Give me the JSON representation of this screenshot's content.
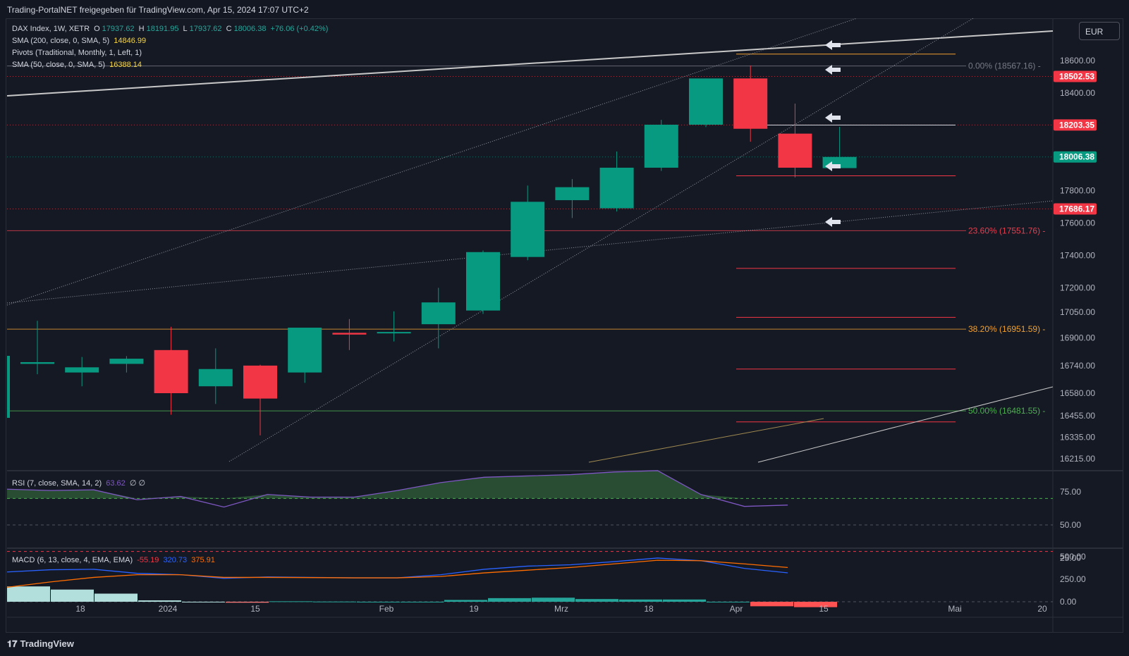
{
  "header": {
    "title": "Trading-PortalNET freigegeben für TradingView.com, Apr 15, 2024 17:07 UTC+2"
  },
  "currency": "EUR",
  "footer": {
    "brand": "TradingView",
    "logo_icon": "tradingview-logo-icon"
  },
  "legend": {
    "symbol": "DAX Index, 1W, XETR",
    "o_label": "O",
    "o_value": "17937.62",
    "h_label": "H",
    "h_value": "18191.95",
    "l_label": "L",
    "l_value": "17937.62",
    "c_label": "C",
    "c_value": "18006.38",
    "change": "+76.06 (+0.42%)",
    "sma200_label": "SMA (200, close, 0, SMA, 5)",
    "sma200_value": "14846.99",
    "pivots_label": "Pivots (Traditional, Monthly, 1, Left, 1)",
    "sma50_label": "SMA (50, close, 0, SMA, 5)",
    "sma50_value": "16388.14"
  },
  "rsi_legend": {
    "label": "RSI (7, close, SMA, 14, 2)",
    "value": "63.62",
    "extra": "∅ ∅"
  },
  "macd_legend": {
    "label": "MACD (6, 13, close, 4, EMA, EMA)",
    "v1": "-55.19",
    "v2": "320.73",
    "v3": "375.91"
  },
  "colors": {
    "up": "#089981",
    "down": "#f23645",
    "bg": "#151924",
    "grid": "#2a2e39",
    "rsi": "#7e57c2",
    "macd": "#2962ff",
    "signal": "#ff6d00",
    "fib_orange": "#f0a030",
    "fib_green": "#4caf50",
    "fib_red": "#e04050",
    "fib_gray": "#787b86"
  },
  "chart_data": {
    "type": "candlestick",
    "timeframe": "1W",
    "x_labels": [
      "18",
      "2024",
      "15",
      "Feb",
      "19",
      "Mrz",
      "18",
      "Apr",
      "15",
      "Mai",
      "20"
    ],
    "price_ticks": [
      18600,
      18400,
      17800,
      17600,
      17400,
      17200,
      17050,
      16900,
      16740,
      16580,
      16455,
      16335,
      16215
    ],
    "price_tick_labels": [
      "18600.00",
      "18400.00",
      "17800.00",
      "17600.00",
      "17400.00",
      "17200.00",
      "17050.00",
      "16900.00",
      "16740.00",
      "16580.00",
      "16455.00",
      "16335.00",
      "16215.00"
    ],
    "candles": [
      {
        "o": 16750,
        "h": 17000,
        "l": 16690,
        "c": 16760
      },
      {
        "o": 16700,
        "h": 16790,
        "l": 16620,
        "c": 16730
      },
      {
        "o": 16750,
        "h": 16795,
        "l": 16700,
        "c": 16780
      },
      {
        "o": 16830,
        "h": 16965,
        "l": 16460,
        "c": 16580
      },
      {
        "o": 16620,
        "h": 16840,
        "l": 16520,
        "c": 16720
      },
      {
        "o": 16740,
        "h": 16745,
        "l": 16345,
        "c": 16550
      },
      {
        "o": 16700,
        "h": 16960,
        "l": 16640,
        "c": 16960
      },
      {
        "o": 16930,
        "h": 17010,
        "l": 16830,
        "c": 16920
      },
      {
        "o": 16930,
        "h": 17055,
        "l": 16880,
        "c": 16935
      },
      {
        "o": 16980,
        "h": 17200,
        "l": 16840,
        "c": 17110
      },
      {
        "o": 17060,
        "h": 17430,
        "l": 17040,
        "c": 17420
      },
      {
        "o": 17390,
        "h": 17830,
        "l": 17370,
        "c": 17730
      },
      {
        "o": 17740,
        "h": 17870,
        "l": 17630,
        "c": 17820
      },
      {
        "o": 17690,
        "h": 18040,
        "l": 17670,
        "c": 17940
      },
      {
        "o": 17940,
        "h": 18235,
        "l": 17920,
        "c": 18205
      },
      {
        "o": 18205,
        "h": 18490,
        "l": 18190,
        "c": 18490
      },
      {
        "o": 18490,
        "h": 18570,
        "l": 18100,
        "c": 18180
      },
      {
        "o": 18150,
        "h": 18335,
        "l": 17880,
        "c": 17940
      },
      {
        "o": 17937.62,
        "h": 18191.95,
        "l": 17937.62,
        "c": 18006.38
      }
    ],
    "price_tags": [
      {
        "value": 18502.53,
        "label": "18502.53",
        "color": "#f23645"
      },
      {
        "value": 18203.35,
        "label": "18203.35",
        "color": "#f23645"
      },
      {
        "value": 18006.38,
        "label": "18006.38",
        "color": "#089981"
      },
      {
        "value": 17686.17,
        "label": "17686.17",
        "color": "#f23645"
      }
    ],
    "fibonacci": [
      {
        "level": "0.00%",
        "value": 18567.16,
        "label": "0.00% (18567.16)",
        "color": "#787b86"
      },
      {
        "level": "23.60%",
        "value": 17551.76,
        "label": "23.60% (17551.76)",
        "color": "#e04050"
      },
      {
        "level": "38.20%",
        "value": 16951.59,
        "label": "38.20% (16951.59)",
        "color": "#f0a030"
      },
      {
        "level": "50.00%",
        "value": 16481.55,
        "label": "50.00% (16481.55)",
        "color": "#4caf50"
      }
    ],
    "rsi": {
      "ticks": [
        75,
        50,
        25
      ],
      "tick_labels": [
        "75.00",
        "50.00",
        "25.00"
      ],
      "values": [
        77,
        76,
        76.5,
        69,
        71.5,
        63.5,
        73,
        71,
        71,
        76,
        82,
        86,
        87,
        88,
        90,
        91,
        73,
        64,
        65
      ]
    },
    "macd": {
      "ticks": [
        500,
        250,
        0
      ],
      "tick_labels": [
        "500.00",
        "250.00",
        "0.00"
      ],
      "macd": [
        330,
        355,
        360,
        315,
        300,
        260,
        275,
        270,
        265,
        265,
        300,
        360,
        395,
        410,
        445,
        485,
        455,
        370,
        320
      ],
      "signal": [
        160,
        220,
        270,
        300,
        300,
        270,
        270,
        268,
        265,
        265,
        280,
        320,
        350,
        380,
        420,
        460,
        455,
        420,
        380
      ],
      "histogram": [
        170,
        135,
        90,
        15,
        0,
        -10,
        5,
        2,
        0,
        0,
        20,
        40,
        45,
        30,
        25,
        25,
        0,
        -50,
        -60
      ]
    }
  }
}
